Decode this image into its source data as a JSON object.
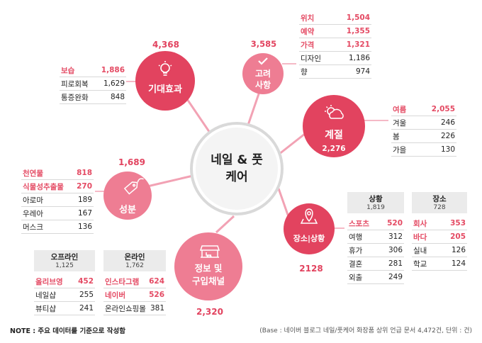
{
  "center": {
    "line1": "네일 & 풋",
    "line2": "케어"
  },
  "nodes": {
    "effect": {
      "label": "기대효과",
      "total": "4,368",
      "icon": "lightbulb-icon"
    },
    "consider": {
      "line1": "고려",
      "line2": "사항",
      "total": "3,585",
      "icon": "check-icon"
    },
    "season": {
      "label": "계절",
      "count": "2,276",
      "icon": "weather-icon"
    },
    "place": {
      "label": "장소|상황",
      "total": "2128",
      "icon": "map-pin-icon"
    },
    "purchase": {
      "line1": "정보 및",
      "line2": "구입채널",
      "total": "2,320",
      "icon": "shop-icon"
    },
    "ingredient": {
      "label": "성분",
      "total": "1,689",
      "icon": "tag-icon"
    }
  },
  "tables": {
    "effect": [
      {
        "name": "보습",
        "value": "1,886",
        "hi": true
      },
      {
        "name": "피로회복",
        "value": "1,629",
        "hi": false
      },
      {
        "name": "통증완화",
        "value": "848",
        "hi": false
      }
    ],
    "consider": [
      {
        "name": "위치",
        "value": "1,504",
        "hi": true
      },
      {
        "name": "예약",
        "value": "1,355",
        "hi": true
      },
      {
        "name": "가격",
        "value": "1,321",
        "hi": true
      },
      {
        "name": "디자인",
        "value": "1,186",
        "hi": false
      },
      {
        "name": "향",
        "value": "974",
        "hi": false
      }
    ],
    "season": [
      {
        "name": "여름",
        "value": "2,055",
        "hi": true
      },
      {
        "name": "겨울",
        "value": "246",
        "hi": false
      },
      {
        "name": "봄",
        "value": "226",
        "hi": false
      },
      {
        "name": "가을",
        "value": "130",
        "hi": false
      }
    ],
    "ingredient": [
      {
        "name": "천연물",
        "value": "818",
        "hi": true
      },
      {
        "name": "식물성추출물",
        "value": "270",
        "hi": true
      },
      {
        "name": "아로마",
        "value": "189",
        "hi": false
      },
      {
        "name": "우레아",
        "value": "167",
        "hi": false
      },
      {
        "name": "머스크",
        "value": "136",
        "hi": false
      }
    ],
    "situation": {
      "title": "상황",
      "total": "1,819",
      "rows": [
        {
          "name": "스포츠",
          "value": "520",
          "hi": true
        },
        {
          "name": "여행",
          "value": "312",
          "hi": false
        },
        {
          "name": "휴가",
          "value": "306",
          "hi": false
        },
        {
          "name": "결혼",
          "value": "281",
          "hi": false
        },
        {
          "name": "외출",
          "value": "249",
          "hi": false
        }
      ]
    },
    "location": {
      "title": "장소",
      "total": "728",
      "rows": [
        {
          "name": "회사",
          "value": "353",
          "hi": true
        },
        {
          "name": "바다",
          "value": "205",
          "hi": true
        },
        {
          "name": "실내",
          "value": "126",
          "hi": false
        },
        {
          "name": "학교",
          "value": "124",
          "hi": false
        }
      ]
    },
    "offline": {
      "title": "오프라인",
      "total": "1,125",
      "rows": [
        {
          "name": "올리브영",
          "value": "452",
          "hi": true
        },
        {
          "name": "네일샵",
          "value": "255",
          "hi": false
        },
        {
          "name": "뷰티샵",
          "value": "241",
          "hi": false
        }
      ]
    },
    "online": {
      "title": "온라인",
      "total": "1,762",
      "rows": [
        {
          "name": "인스타그램",
          "value": "624",
          "hi": true
        },
        {
          "name": "네이버",
          "value": "526",
          "hi": true
        },
        {
          "name": "온라인쇼핑몰",
          "value": "381",
          "hi": false
        }
      ]
    }
  },
  "footer": {
    "note": "NOTE : 주요 데이터를 기준으로 작성함",
    "base": "(Base : 네이버 블로그 네일/풋케어 화장품 상위 언급 문서 4,472건, 단위 : 건)"
  },
  "colors": {
    "dark": "#e2435f",
    "mid": "#ea6a84",
    "light": "#f39bb0",
    "spoke": "#f0a3b4",
    "hi_text": "#e44a63"
  }
}
